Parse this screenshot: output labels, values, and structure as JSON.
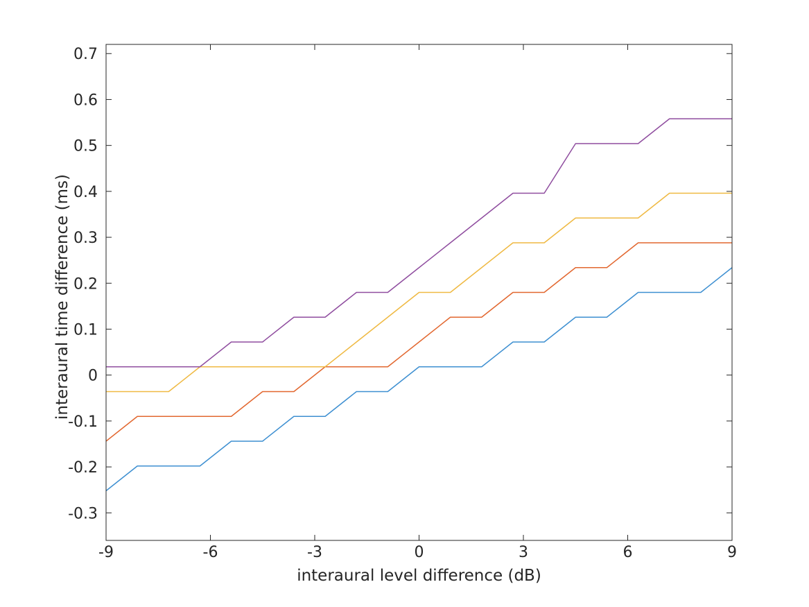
{
  "figure": {
    "background": "#ffffff",
    "axis_color": "#262626",
    "text_color": "#252525"
  },
  "chart_data": {
    "type": "line",
    "title": "",
    "xlabel": "interaural level difference (dB)",
    "ylabel": "interaural time difference (ms)",
    "grid": false,
    "legend": "none",
    "xlim": [
      -9,
      9
    ],
    "ylim": [
      -0.36,
      0.72
    ],
    "x_ticks": [
      -9,
      -6,
      -3,
      0,
      3,
      6,
      9
    ],
    "x_tick_labels": [
      "-9",
      "-6",
      "-3",
      "0",
      "3",
      "6",
      "9"
    ],
    "y_ticks": [
      -0.3,
      -0.2,
      -0.1,
      0,
      0.1,
      0.2,
      0.3,
      0.4,
      0.5,
      0.6,
      0.7
    ],
    "y_tick_labels": [
      "-0.3",
      "-0.2",
      "-0.1",
      "0",
      "0.1",
      "0.2",
      "0.3",
      "0.4",
      "0.5",
      "0.6",
      "0.7"
    ],
    "x": [
      -9,
      -8.1,
      -7.2,
      -6.3,
      -5.4,
      -4.5,
      -3.6,
      -2.7,
      -1.8,
      -0.9,
      0,
      0.9,
      1.8,
      2.7,
      3.6,
      4.5,
      5.4,
      6.3,
      7.2,
      8.1,
      9
    ],
    "series": [
      {
        "name": "line-blue",
        "color": "#3D8FD1",
        "values": [
          -0.252,
          -0.198,
          -0.198,
          -0.198,
          -0.144,
          -0.144,
          -0.09,
          -0.09,
          -0.036,
          -0.036,
          0.018,
          0.018,
          0.018,
          0.072,
          0.072,
          0.126,
          0.126,
          0.18,
          0.18,
          0.18,
          0.234
        ]
      },
      {
        "name": "line-orange",
        "color": "#E2672F",
        "values": [
          -0.144,
          -0.09,
          -0.09,
          -0.09,
          -0.09,
          -0.036,
          -0.036,
          0.018,
          0.018,
          0.018,
          0.072,
          0.126,
          0.126,
          0.18,
          0.18,
          0.234,
          0.234,
          0.288,
          0.288,
          0.288,
          0.288
        ]
      },
      {
        "name": "line-yellow",
        "color": "#EFB942",
        "values": [
          -0.036,
          -0.036,
          -0.036,
          0.018,
          0.018,
          0.018,
          0.018,
          0.018,
          0.072,
          0.126,
          0.18,
          0.18,
          0.234,
          0.288,
          0.288,
          0.342,
          0.342,
          0.342,
          0.396,
          0.396,
          0.396
        ]
      },
      {
        "name": "line-purple",
        "color": "#8F4D9F",
        "values": [
          0.018,
          0.018,
          0.018,
          0.018,
          0.072,
          0.072,
          0.126,
          0.126,
          0.18,
          0.18,
          0.234,
          0.288,
          0.342,
          0.396,
          0.396,
          0.504,
          0.504,
          0.504,
          0.558,
          0.558,
          0.558
        ]
      }
    ]
  }
}
